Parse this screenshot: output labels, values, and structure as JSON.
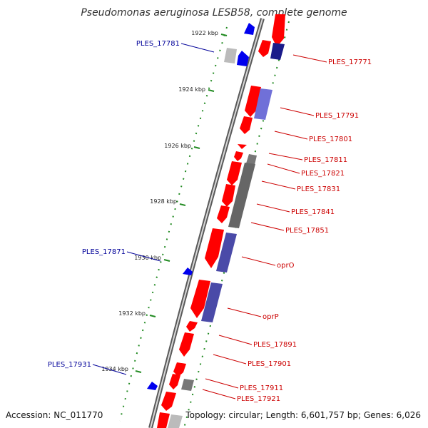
{
  "title": "Pseudomonas aeruginosa LESB58, complete genome",
  "footer": {
    "accession": "Accession: NC_011770",
    "summary": "Topology: circular; Length: 6,601,757 bp; Genes: 6,026"
  },
  "colors": {
    "forward_gene": "#ff0000",
    "reverse_gene": "#0000ee",
    "grey_feature": "#888888",
    "cds_purple": "#6666cc",
    "tick_green": "#228b22",
    "backbone": "#888888",
    "label_red": "#cc0000",
    "label_blue": "#000099"
  },
  "ticks": [
    "1922 kbp",
    "1924 kbp",
    "1926 kbp",
    "1928 kbp",
    "1930 kbp",
    "1932 kbp",
    "1934 kbp"
  ],
  "labels_right": [
    "PLES_17771",
    "PLES_17791",
    "PLES_17801",
    "PLES_17811",
    "PLES_17821",
    "PLES_17831",
    "PLES_17841",
    "PLES_17851",
    "oprO",
    "oprP",
    "PLES_17891",
    "PLES_17901",
    "PLES_17911",
    "PLES_17921"
  ],
  "labels_left": [
    "PLES_17781",
    "PLES_17871",
    "PLES_17931"
  ]
}
